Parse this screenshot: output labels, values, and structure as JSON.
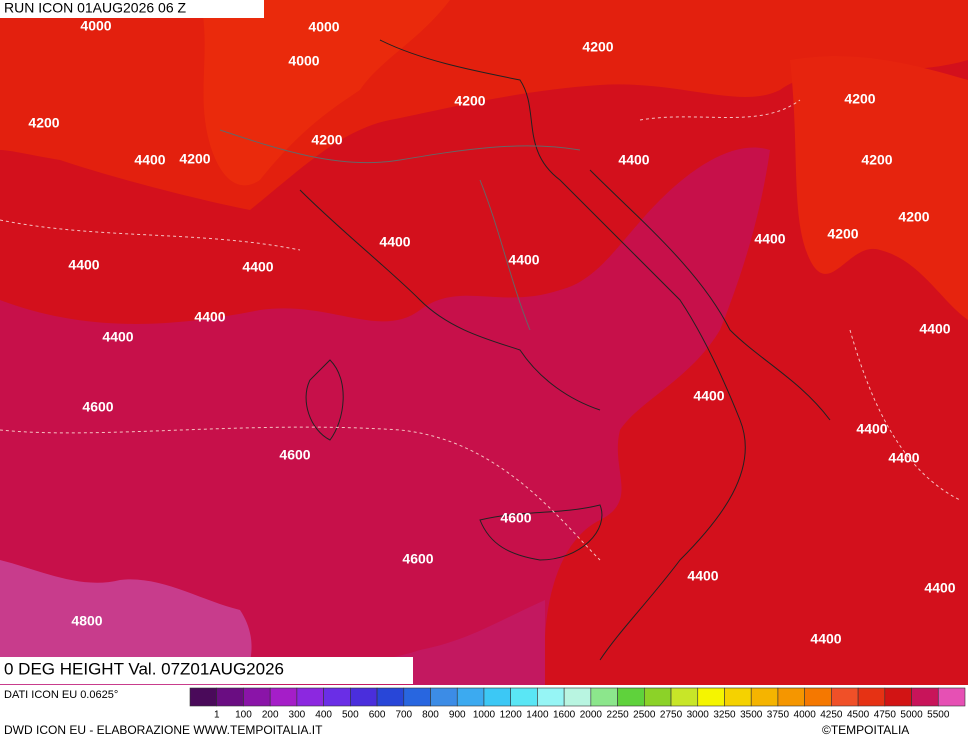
{
  "header": {
    "run": "RUN ICON 01AUG2026 06 Z"
  },
  "map": {
    "contour_labels": [
      "4000",
      "4000",
      "4000",
      "4200",
      "4200",
      "4200",
      "4200",
      "4200",
      "4400",
      "4200",
      "4400",
      "4200",
      "4200",
      "4200",
      "4400",
      "4400",
      "4400",
      "4400",
      "4400",
      "4400",
      "4400",
      "4400",
      "4600",
      "4400",
      "4400",
      "4400",
      "4600",
      "4600",
      "4600",
      "4400",
      "4400",
      "4800",
      "4400"
    ]
  },
  "title": "0 DEG HEIGHT Val. 07Z01AUG2026",
  "source": "DATI ICON EU 0.0625°",
  "colorbar": {
    "labels": [
      "1",
      "100",
      "200",
      "300",
      "400",
      "500",
      "600",
      "700",
      "800",
      "900",
      "1000",
      "1200",
      "1400",
      "1600",
      "2000",
      "2250",
      "2500",
      "2750",
      "3000",
      "3250",
      "3500",
      "3750",
      "4000",
      "4250",
      "4500",
      "4750",
      "5000",
      "5500"
    ],
    "colors": [
      "#4a0a5a",
      "#6a0d82",
      "#8a14a8",
      "#a51ec8",
      "#8c28e0",
      "#6a2ee6",
      "#4a2edc",
      "#2846d8",
      "#2866e0",
      "#3c8ce6",
      "#3caaf0",
      "#3cc8f5",
      "#5ae6f5",
      "#96f5f5",
      "#b9f5e1",
      "#8ce68c",
      "#5fd23c",
      "#8cd228",
      "#c8e628",
      "#f5f500",
      "#f5d200",
      "#f5b400",
      "#f59600",
      "#f57800",
      "#f05028",
      "#e63214",
      "#d21414",
      "#c8145a",
      "#e650b4"
    ]
  },
  "footer": {
    "credit": "DWD ICON EU - ELABORAZIONE WWW.TEMPOITALIA.IT",
    "copyright": "©TEMPOITALIA"
  }
}
